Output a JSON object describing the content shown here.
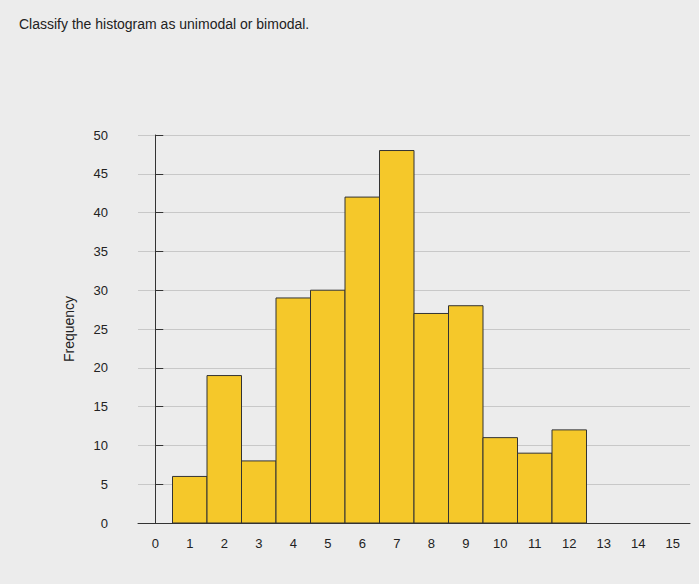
{
  "chart_data": {
    "type": "histogram",
    "title": "Classify the histogram as unimodal or bimodal.",
    "ylabel": "Frequency",
    "bins": [
      0.5,
      1.5,
      2.5,
      3.5,
      4.5,
      5.5,
      6.5,
      7.5,
      8.5,
      9.5,
      10.5,
      11.5,
      12.5
    ],
    "values": [
      6,
      19,
      8,
      29,
      30,
      42,
      48,
      27,
      28,
      11,
      9,
      12
    ],
    "color": "#f5c82a",
    "xlim": [
      -0.5,
      15.5
    ],
    "xticks": [
      0,
      1,
      2,
      3,
      4,
      5,
      6,
      7,
      8,
      9,
      10,
      11,
      12,
      13,
      14,
      15
    ],
    "ylim": [
      0,
      50
    ],
    "yticks": [
      0,
      5,
      10,
      15,
      20,
      25,
      30,
      35,
      40,
      45,
      50
    ],
    "grid": true
  }
}
